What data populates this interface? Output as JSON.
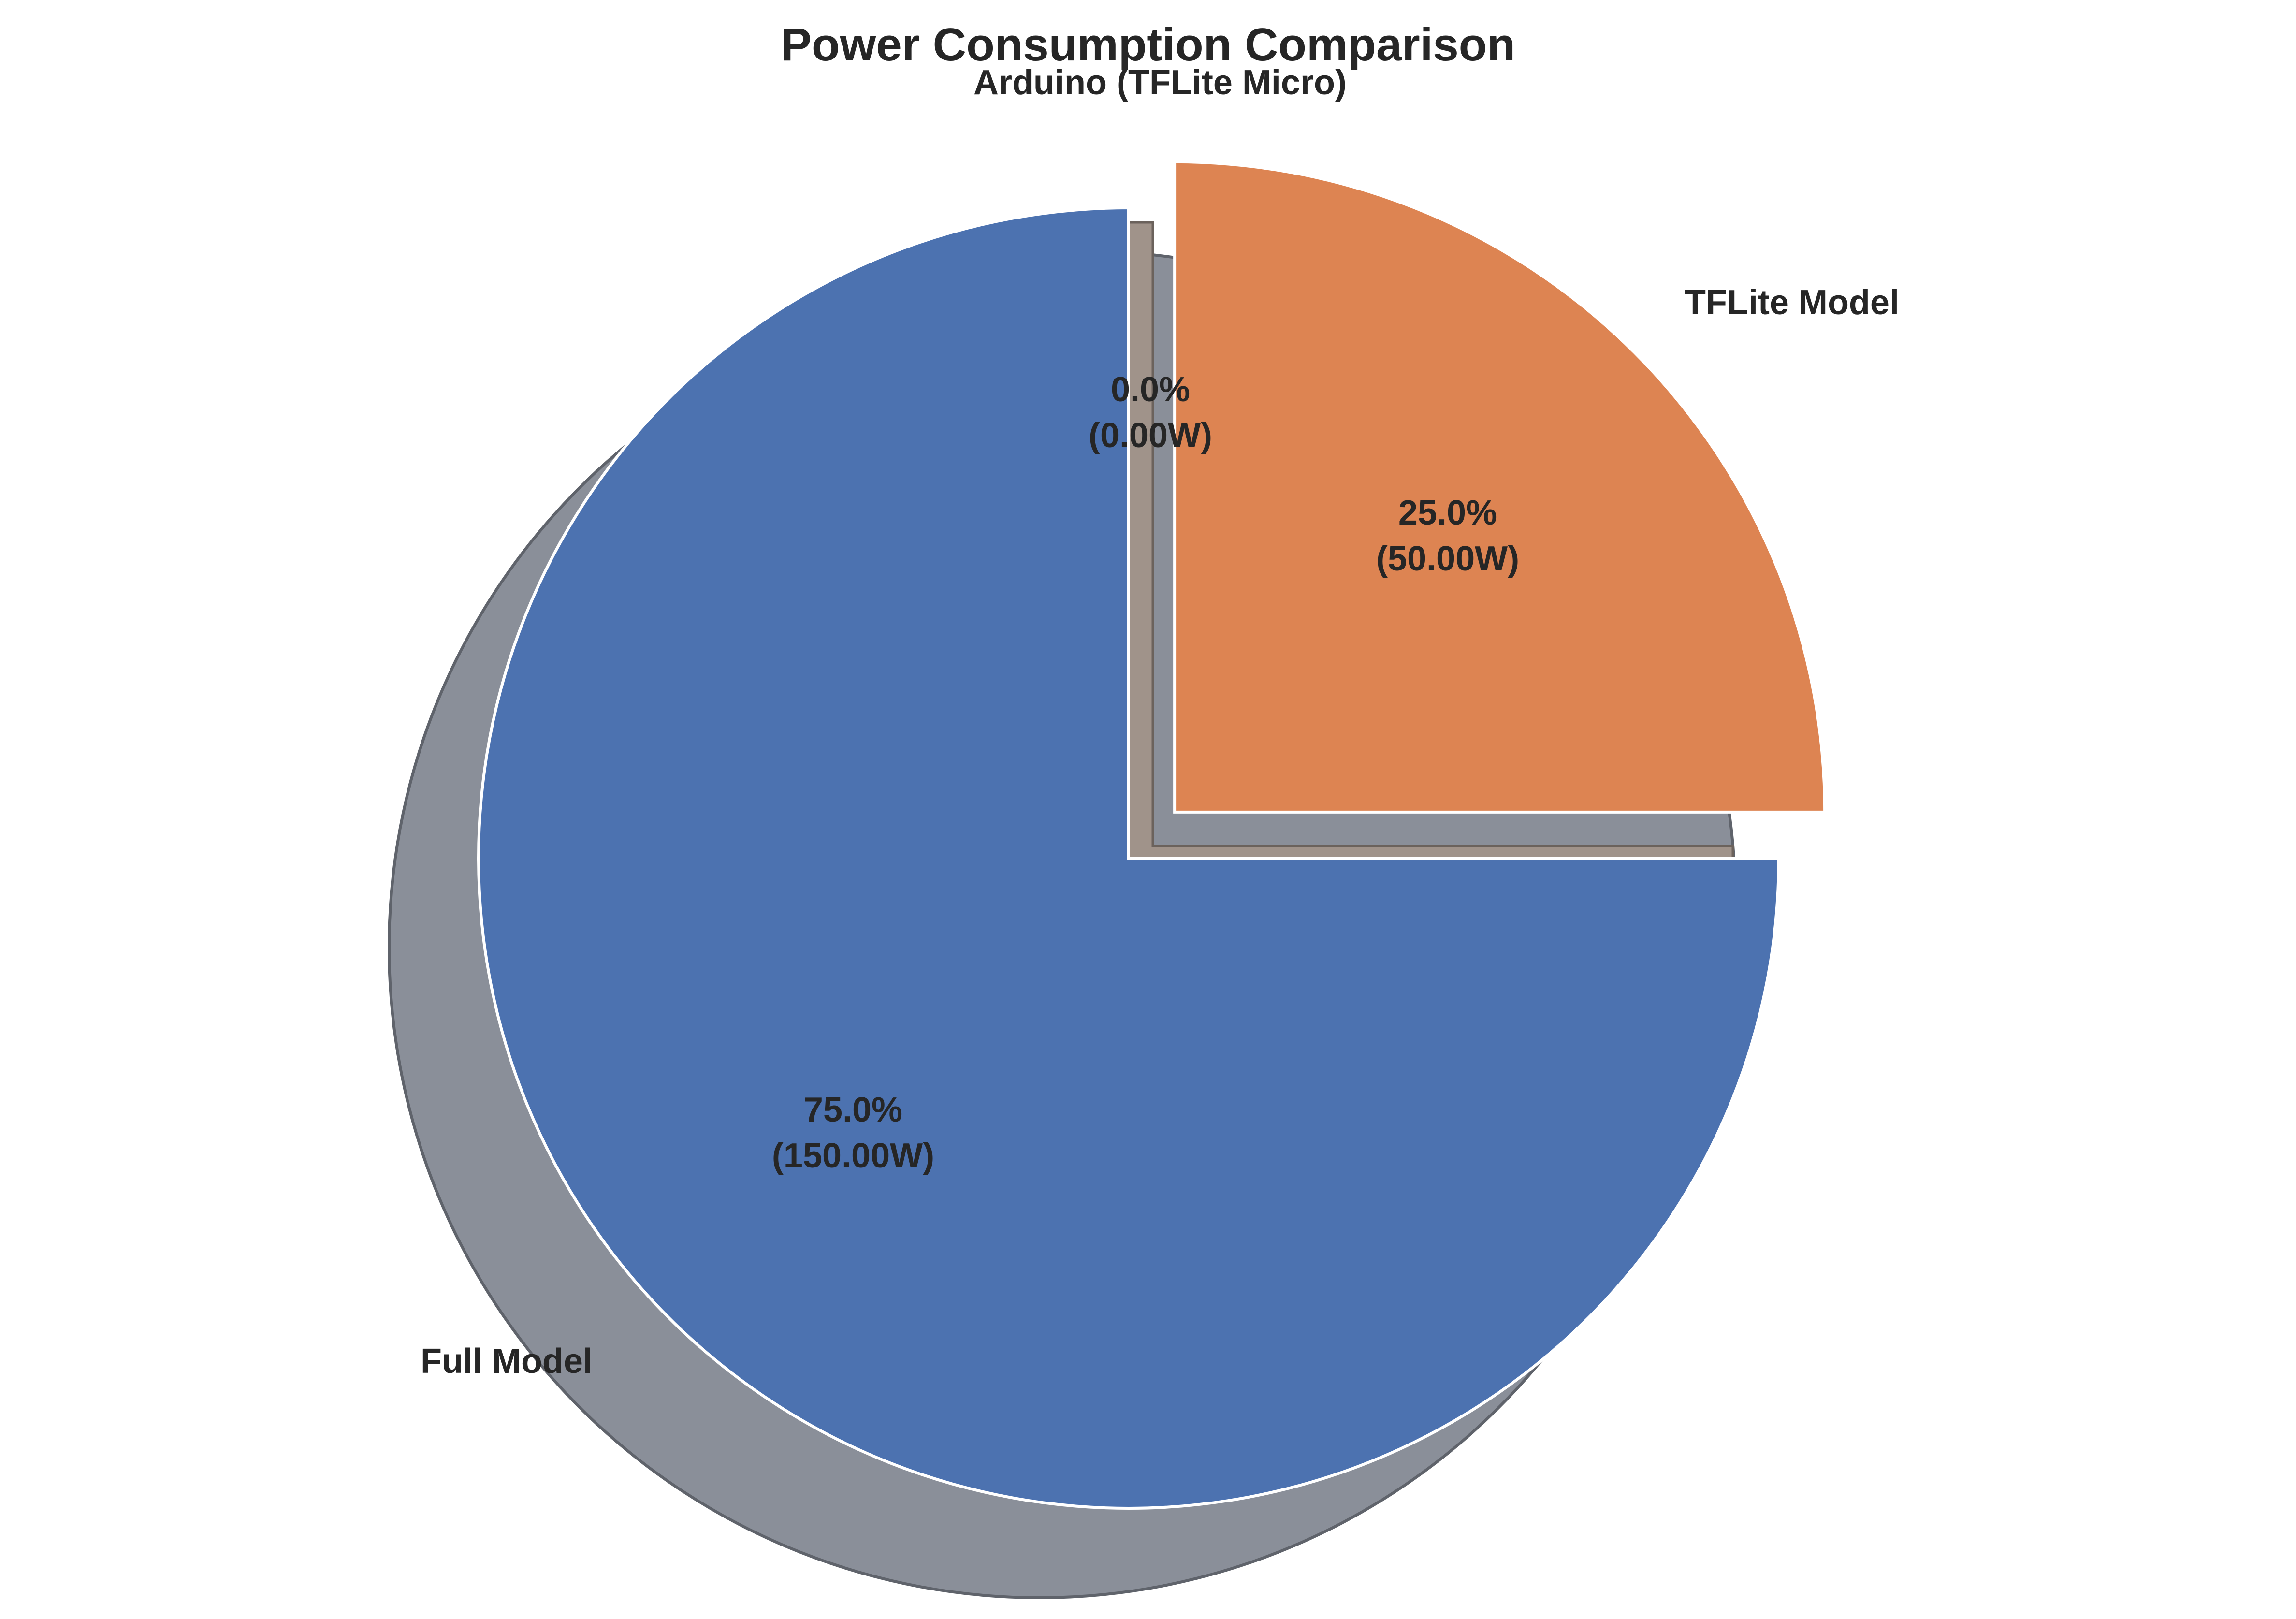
{
  "chart_data": {
    "type": "pie",
    "title": "Power Consumption Comparison",
    "unit": "W",
    "shadow": true,
    "start_angle_deg": 90,
    "direction": "counterclockwise",
    "slices": [
      {
        "label": "Full Model",
        "value": 150.0,
        "percent": 75.0,
        "pct_text": "75.0%",
        "value_text": "(150.00W)",
        "color": "#4c72b0",
        "exploded": false
      },
      {
        "label": "TFLite Model",
        "value": 50.0,
        "percent": 25.0,
        "pct_text": "25.0%",
        "value_text": "(50.00W)",
        "color": "#dd8452",
        "exploded": true
      },
      {
        "label": "Arduino (TFLite Micro)",
        "value": 0.0,
        "percent": 0.0,
        "pct_text": "0.0%",
        "value_text": "(0.00W)",
        "color": "#55a868",
        "exploded": true
      }
    ],
    "shadow_color": "#8a8f99",
    "edge_color": "#ffffff"
  }
}
